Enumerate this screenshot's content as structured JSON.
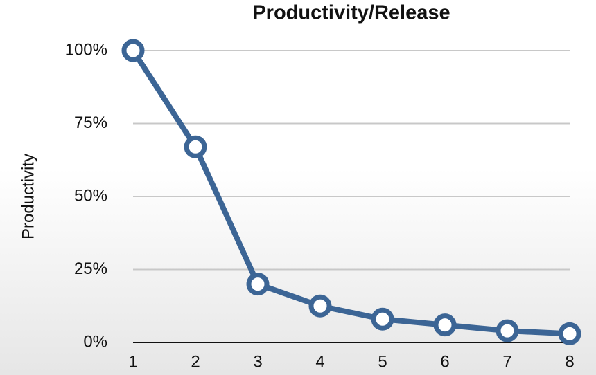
{
  "chart_data": {
    "type": "line",
    "title": "Productivity/Release",
    "y_label": "Productivity",
    "x": [
      1,
      2,
      3,
      4,
      5,
      6,
      7,
      8
    ],
    "series": [
      {
        "name": "Productivity",
        "color": "#3c6595",
        "values": [
          100,
          67,
          20,
          12.5,
          8,
          6,
          4,
          3
        ]
      }
    ],
    "xlim": [
      1,
      8
    ],
    "xticks": [
      1,
      2,
      3,
      4,
      5,
      6,
      7,
      8
    ],
    "ylim": [
      0,
      100
    ],
    "yticks": [
      {
        "value": 0,
        "label": "0%"
      },
      {
        "value": 25,
        "label": "25%"
      },
      {
        "value": 50,
        "label": "50%"
      },
      {
        "value": 75,
        "label": "75%"
      },
      {
        "value": 100,
        "label": "100%"
      }
    ],
    "grid": true
  }
}
